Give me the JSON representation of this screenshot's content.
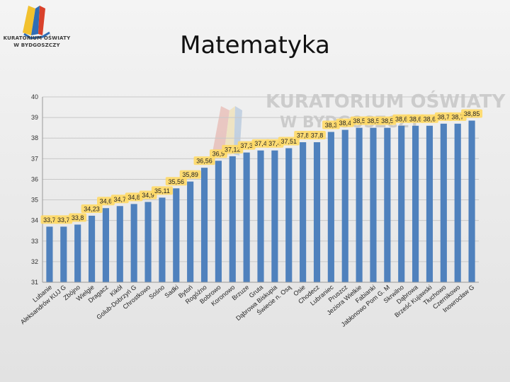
{
  "slide": {
    "title": "Matematyka",
    "logo_line1": "KURATORIUM OŚWIATY",
    "logo_line2": "W BYDGOSZCZY",
    "watermark_line1": "KURATORIUM OŚWIATY",
    "watermark_line2": "W BYDGOSZCZY"
  },
  "colors": {
    "bar": "#4f81bd",
    "label_bg": "#ffd966",
    "grid": "#c8c8c8",
    "logo_red": "#d9412b",
    "logo_yellow": "#f2c12e",
    "logo_blue": "#2f6db5"
  },
  "chart_data": {
    "type": "bar",
    "ylim": [
      31,
      40
    ],
    "yticks": [
      31,
      32,
      33,
      34,
      35,
      36,
      37,
      38,
      39,
      40
    ],
    "grid": true,
    "categories": [
      "Lubanie",
      "Aleksandrów KUJ G",
      "Zbójno",
      "Wielgie",
      "Dragacz",
      "Kikół",
      "Golub-Dobrzyń G",
      "Chrostkowo",
      "Sośno",
      "Sadki",
      "Bytoń",
      "Rogóźno",
      "Bobrowo",
      "Koronowo",
      "Brzuze",
      "Gruta",
      "Dąbrowa Biskupia",
      "Świecie n. Osą",
      "Osie",
      "Chodecz",
      "Lubraniec",
      "Pruszcz",
      "Jeziora Wielkie",
      "Fabianki",
      "Jabłonowo Pom G. M",
      "Skrwilno",
      "Dąbrowa",
      "Brześć Kujawski",
      "Tłuchowo",
      "Czernikowo",
      "Inowrocław G"
    ],
    "values": [
      33.7,
      33.7,
      33.8,
      34.23,
      34.6,
      34.7,
      34.8,
      34.9,
      35.11,
      35.56,
      35.89,
      36.56,
      36.9,
      37.12,
      37.3,
      37.4,
      37.4,
      37.51,
      37.8,
      37.8,
      38.3,
      38.4,
      38.5,
      38.5,
      38.5,
      38.6,
      38.6,
      38.6,
      38.7,
      38.7,
      38.85
    ],
    "data_labels": [
      "33,7",
      "33,7",
      "33,8",
      "34,23",
      "34,6",
      "34,7",
      "34,8",
      "34,9",
      "35,11",
      "35,56",
      "35,89",
      "36,56",
      "36,9",
      "37,12",
      "37,3",
      "37,4",
      "37,4",
      "37,51",
      "37,8",
      "37,8",
      "38,3",
      "38,4",
      "38,5",
      "38,5",
      "38,5",
      "38,6",
      "38,6",
      "38,6",
      "38,7",
      "38,7",
      "38,85"
    ]
  }
}
